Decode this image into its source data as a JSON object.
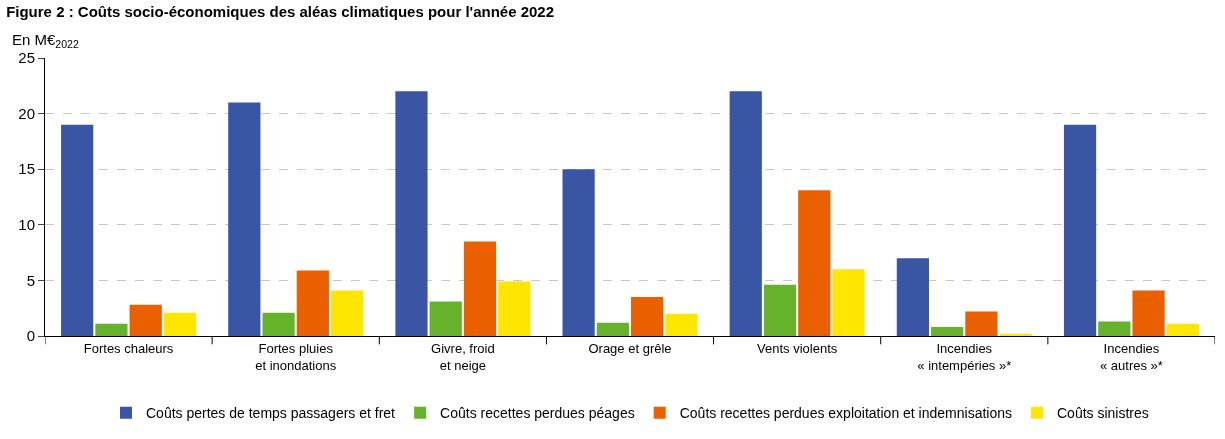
{
  "chart_data": {
    "type": "bar",
    "title": "Figure 2 : Coûts socio-économiques des aléas climatiques pour l'année 2022",
    "subtitle": "En M€$_{2022}$",
    "categories": [
      "Fortes chaleurs",
      "Fortes pluies\net inondations",
      "Givre, froid\net neige",
      "Orage et grêle",
      "Vents violents",
      "Incendies\n« intempéries »*",
      "Incendies\n« autres »*"
    ],
    "series": [
      {
        "name": "Coûts pertes de temps passagers et fret",
        "color": "#3a55a3",
        "values": [
          19,
          21,
          22,
          15,
          22,
          7,
          19
        ]
      },
      {
        "name": "Coûts recettes perdues péages",
        "color": "#67b22b",
        "values": [
          1.1,
          2.1,
          3.1,
          1.2,
          4.6,
          0.8,
          1.3
        ]
      },
      {
        "name": "Coûts recettes perdues exploitation et indemnisations",
        "color": "#ea6000",
        "values": [
          2.8,
          5.9,
          8.5,
          3.5,
          13.1,
          2.2,
          4.1
        ]
      },
      {
        "name": "Coûts sinistres",
        "color": "#ffe600",
        "values": [
          2.1,
          4.1,
          4.9,
          2.0,
          6.0,
          0.2,
          1.1
        ]
      }
    ],
    "ylim": [
      0,
      25
    ],
    "yticks": [
      0,
      5,
      10,
      15,
      20,
      25
    ],
    "grid": "y",
    "legend": "bottom"
  }
}
